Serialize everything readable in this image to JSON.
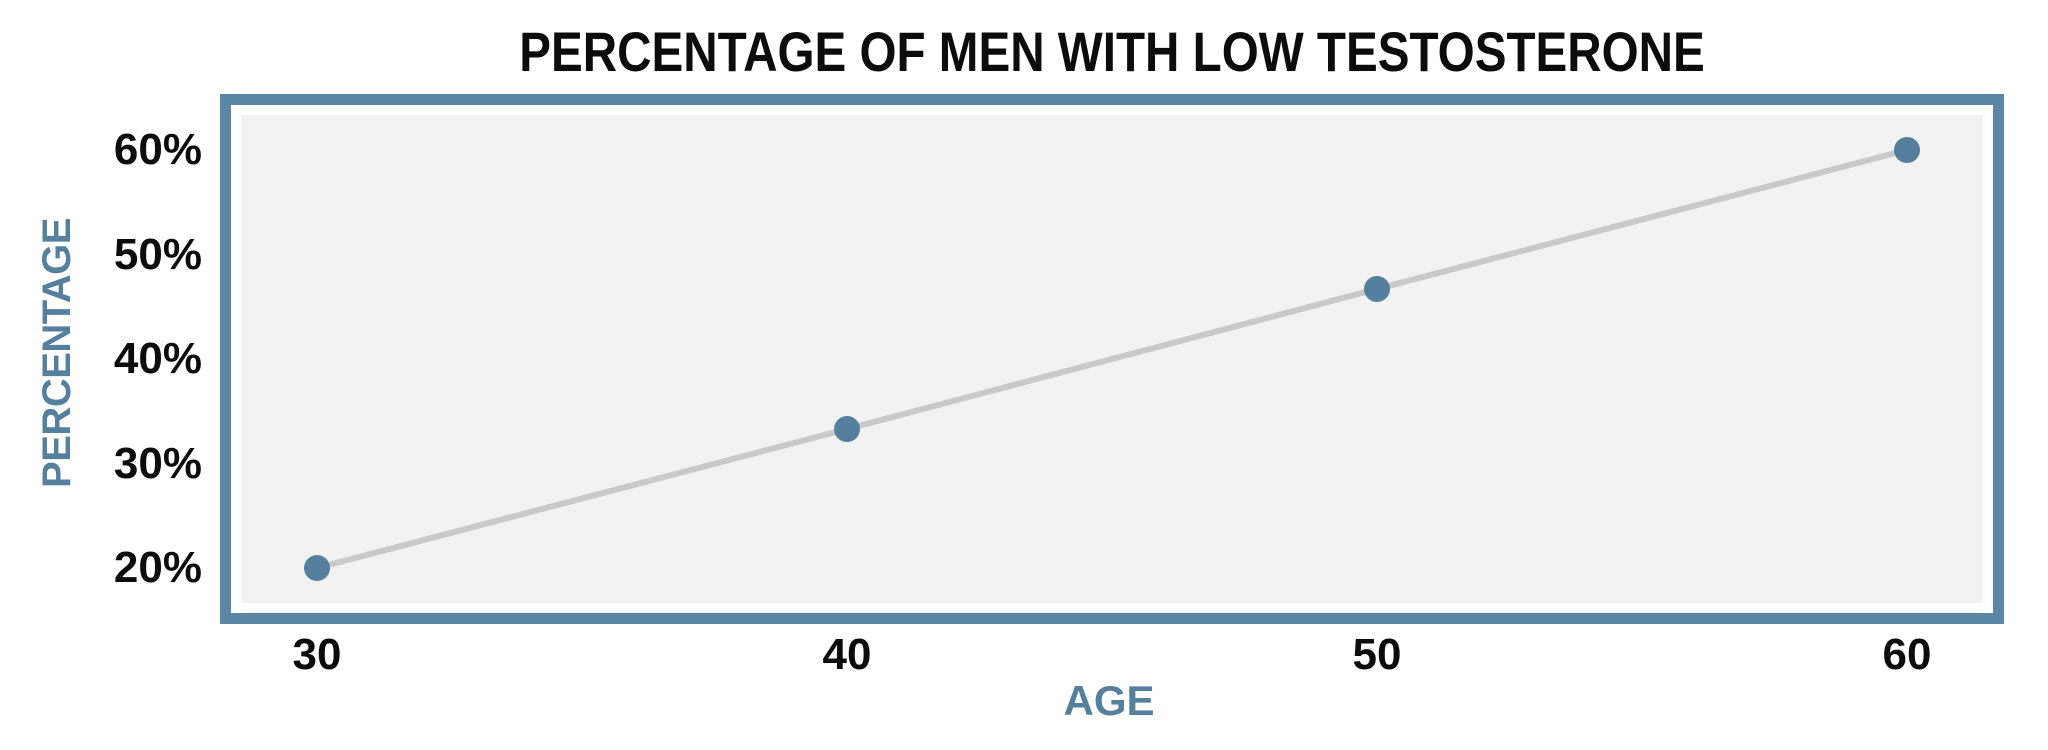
{
  "page": {
    "background": "#ffffff"
  },
  "chart_data": {
    "type": "line",
    "title": "PERCENTAGE OF MEN WITH LOW TESTOSTERONE",
    "xlabel": "AGE",
    "ylabel": "PERCENTAGE",
    "x": [
      30,
      40,
      50,
      60
    ],
    "series": [
      {
        "name": "Percentage of men with low testosterone",
        "values": [
          20,
          33.3,
          46.7,
          60
        ]
      }
    ],
    "x_tick_labels": [
      "30",
      "40",
      "50",
      "60"
    ],
    "y_ticks": [
      20,
      30,
      40,
      50,
      60
    ],
    "y_tick_labels": [
      "20%",
      "30%",
      "40%",
      "50%",
      "60%"
    ],
    "ylim": [
      20,
      60
    ],
    "grid": false,
    "legend": false,
    "colors": {
      "accent": "#54809e",
      "border": "#5a86a4",
      "plot_bg": "#f2f2f2",
      "line": "#c9c9c9",
      "text": "#0c0c0c"
    }
  }
}
